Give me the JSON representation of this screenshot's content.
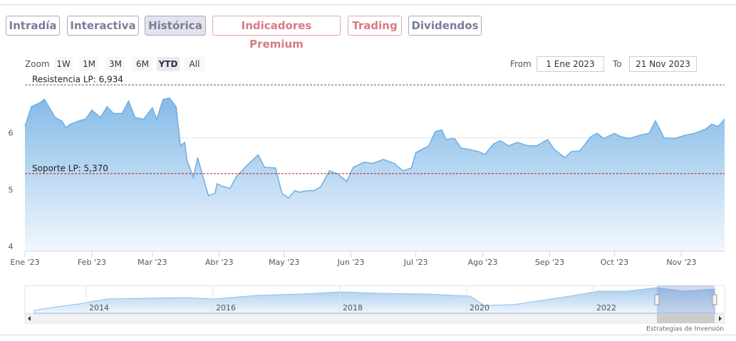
{
  "tabs": [
    "Intradía",
    "Interactiva",
    "Histórica",
    "Indicadores Premium",
    "Trading",
    "Dividendos"
  ],
  "zoom": {
    "label": "Zoom",
    "buttons": [
      "1W",
      "1M",
      "3M",
      "6M",
      "YTD",
      "All"
    ]
  },
  "range": {
    "from_label": "From",
    "from": "1 Ene 2023",
    "to_label": "To",
    "to": "21 Nov 2023"
  },
  "navigator": {
    "labels": [
      "2014",
      "2016",
      "2018",
      "2020",
      "2022"
    ]
  },
  "credit": "Estrategias de Inversión",
  "chart_data": {
    "type": "area",
    "color": "#6eaee2",
    "grid": true,
    "x": [
      "2023-01-01",
      "2023-01-04",
      "2023-01-08",
      "2023-01-10",
      "2023-01-13",
      "2023-01-15",
      "2023-01-18",
      "2023-01-20",
      "2023-01-22",
      "2023-01-26",
      "2023-01-29",
      "2023-02-01",
      "2023-02-05",
      "2023-02-08",
      "2023-02-11",
      "2023-02-15",
      "2023-02-18",
      "2023-02-21",
      "2023-02-25",
      "2023-03-01",
      "2023-03-03",
      "2023-03-06",
      "2023-03-09",
      "2023-03-12",
      "2023-03-14",
      "2023-03-16",
      "2023-03-17",
      "2023-03-20",
      "2023-03-22",
      "2023-03-25",
      "2023-03-27",
      "2023-03-30",
      "2023-03-31",
      "2023-04-03",
      "2023-04-06",
      "2023-04-09",
      "2023-04-14",
      "2023-04-19",
      "2023-04-22",
      "2023-04-27",
      "2023-04-30",
      "2023-05-03",
      "2023-05-06",
      "2023-05-08",
      "2023-05-12",
      "2023-05-15",
      "2023-05-18",
      "2023-05-22",
      "2023-05-26",
      "2023-05-30",
      "2023-06-02",
      "2023-06-07",
      "2023-06-11",
      "2023-06-16",
      "2023-06-21",
      "2023-06-25",
      "2023-06-29",
      "2023-07-01",
      "2023-07-04",
      "2023-07-07",
      "2023-07-10",
      "2023-07-13",
      "2023-07-15",
      "2023-07-19",
      "2023-07-22",
      "2023-07-25",
      "2023-07-30",
      "2023-08-02",
      "2023-08-06",
      "2023-08-09",
      "2023-08-13",
      "2023-08-17",
      "2023-08-22",
      "2023-08-26",
      "2023-08-31",
      "2023-09-03",
      "2023-09-08",
      "2023-09-11",
      "2023-09-15",
      "2023-09-20",
      "2023-09-23",
      "2023-09-26",
      "2023-10-01",
      "2023-10-04",
      "2023-10-08",
      "2023-10-13",
      "2023-10-17",
      "2023-10-20",
      "2023-10-24",
      "2023-10-29",
      "2023-11-03",
      "2023-11-07",
      "2023-11-12",
      "2023-11-15",
      "2023-11-18",
      "2023-11-21"
    ],
    "values": [
      6.2,
      6.55,
      6.62,
      6.68,
      6.49,
      6.36,
      6.3,
      6.18,
      6.24,
      6.3,
      6.33,
      6.49,
      6.36,
      6.55,
      6.43,
      6.43,
      6.65,
      6.36,
      6.33,
      6.53,
      6.33,
      6.68,
      6.7,
      6.55,
      5.86,
      5.92,
      5.61,
      5.3,
      5.65,
      5.23,
      4.98,
      5.02,
      5.19,
      5.14,
      5.11,
      5.32,
      5.52,
      5.7,
      5.48,
      5.47,
      5.02,
      4.94,
      5.07,
      5.04,
      5.07,
      5.07,
      5.14,
      5.42,
      5.36,
      5.23,
      5.48,
      5.57,
      5.55,
      5.62,
      5.55,
      5.42,
      5.47,
      5.74,
      5.8,
      5.86,
      6.11,
      6.14,
      5.97,
      5.99,
      5.82,
      5.8,
      5.76,
      5.71,
      5.89,
      5.95,
      5.86,
      5.92,
      5.86,
      5.86,
      5.97,
      5.8,
      5.65,
      5.76,
      5.77,
      6.02,
      6.08,
      5.99,
      6.08,
      6.02,
      5.99,
      6.05,
      6.08,
      6.3,
      6.0,
      5.99,
      6.05,
      6.08,
      6.15,
      6.24,
      6.2,
      6.33
    ],
    "xlim": [
      "2023-01-01",
      "2023-11-21"
    ],
    "xticks": [
      {
        "value": "2023-01-01",
        "label": "Ene '23"
      },
      {
        "value": "2023-02-01",
        "label": "Feb '23"
      },
      {
        "value": "2023-03-01",
        "label": "Mar '23"
      },
      {
        "value": "2023-04-01",
        "label": "Abr '23"
      },
      {
        "value": "2023-05-01",
        "label": "May '23"
      },
      {
        "value": "2023-06-01",
        "label": "Jun '23"
      },
      {
        "value": "2023-07-01",
        "label": "Jul '23"
      },
      {
        "value": "2023-08-01",
        "label": "Ago '23"
      },
      {
        "value": "2023-09-01",
        "label": "Sep '23"
      },
      {
        "value": "2023-10-01",
        "label": "Oct '23"
      },
      {
        "value": "2023-11-01",
        "label": "Nov '23"
      }
    ],
    "ylim": [
      4,
      7.05
    ],
    "yticks": [
      4,
      5,
      6
    ],
    "annotations": [
      {
        "label": "Resistencia LP: 6,934",
        "value": 6.934,
        "color": "#2e7d32"
      },
      {
        "label": "Soporte LP: 5,370",
        "value": 5.37,
        "color": "#b71c1c"
      }
    ]
  }
}
